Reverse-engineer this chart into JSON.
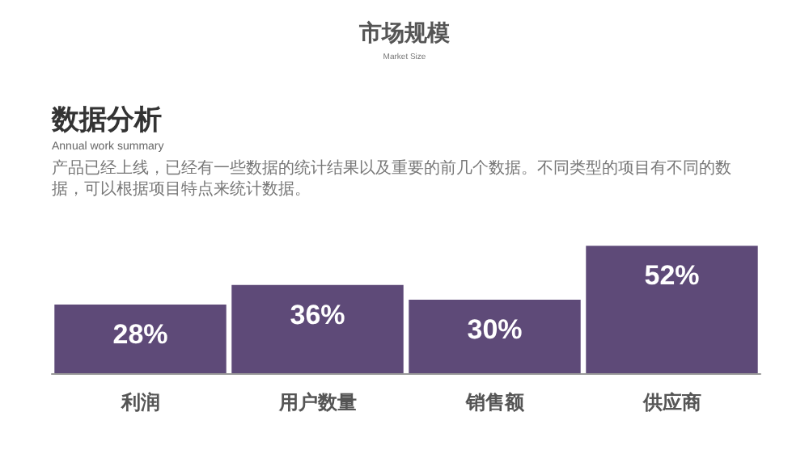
{
  "chart_data": {
    "type": "bar",
    "title": "市场规模",
    "subtitle": "Market Size",
    "annotations": [
      "数据分析",
      "Annual work summary",
      "产品已经上线，已经有一些数据的统计结果以及重要的前几个数据。不同类型的项目有不同的数据，可以根据项目特点来统计数据。"
    ],
    "categories": [
      "利润",
      "用户数量",
      "销售额",
      "供应商"
    ],
    "values": [
      28,
      36,
      30,
      52
    ],
    "value_labels": [
      "28%",
      "36%",
      "30%",
      "52%"
    ],
    "color": "#5e4a78"
  }
}
